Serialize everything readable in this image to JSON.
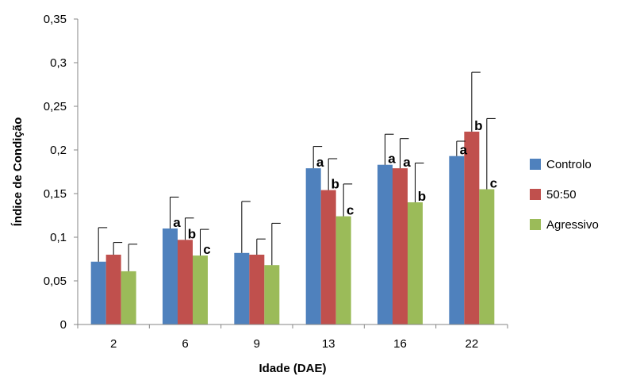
{
  "chart_data": {
    "type": "bar",
    "title": "",
    "xlabel": "Idade (DAE)",
    "ylabel": "Índice de Condição",
    "ylim": [
      0,
      0.35
    ],
    "yticks": [
      0,
      0.05,
      0.1,
      0.15,
      0.2,
      0.25,
      0.3,
      0.35
    ],
    "ytick_labels": [
      "0",
      "0,05",
      "0,1",
      "0,15",
      "0,2",
      "0,25",
      "0,3",
      "0,35"
    ],
    "categories": [
      "2",
      "6",
      "9",
      "13",
      "16",
      "22"
    ],
    "grid": false,
    "legend_position": "right",
    "series": [
      {
        "name": "Controlo",
        "color": "#4F81BD",
        "values": [
          0.072,
          0.11,
          0.082,
          0.179,
          0.183,
          0.193
        ],
        "error": [
          0.039,
          0.036,
          0.059,
          0.025,
          0.035,
          0.017
        ],
        "labels": [
          "",
          "a",
          "",
          "a",
          "a",
          "a"
        ]
      },
      {
        "name": "50:50",
        "color": "#C0504D",
        "values": [
          0.08,
          0.097,
          0.08,
          0.154,
          0.179,
          0.221
        ],
        "error": [
          0.014,
          0.025,
          0.018,
          0.036,
          0.034,
          0.068
        ],
        "labels": [
          "",
          "b",
          "",
          "b",
          "a",
          "b"
        ]
      },
      {
        "name": "Agressivo",
        "color": "#9BBB59",
        "values": [
          0.061,
          0.079,
          0.068,
          0.124,
          0.14,
          0.155
        ],
        "error": [
          0.031,
          0.03,
          0.048,
          0.037,
          0.045,
          0.081
        ],
        "labels": [
          "",
          "c",
          "",
          "c",
          "b",
          "c"
        ]
      }
    ]
  }
}
